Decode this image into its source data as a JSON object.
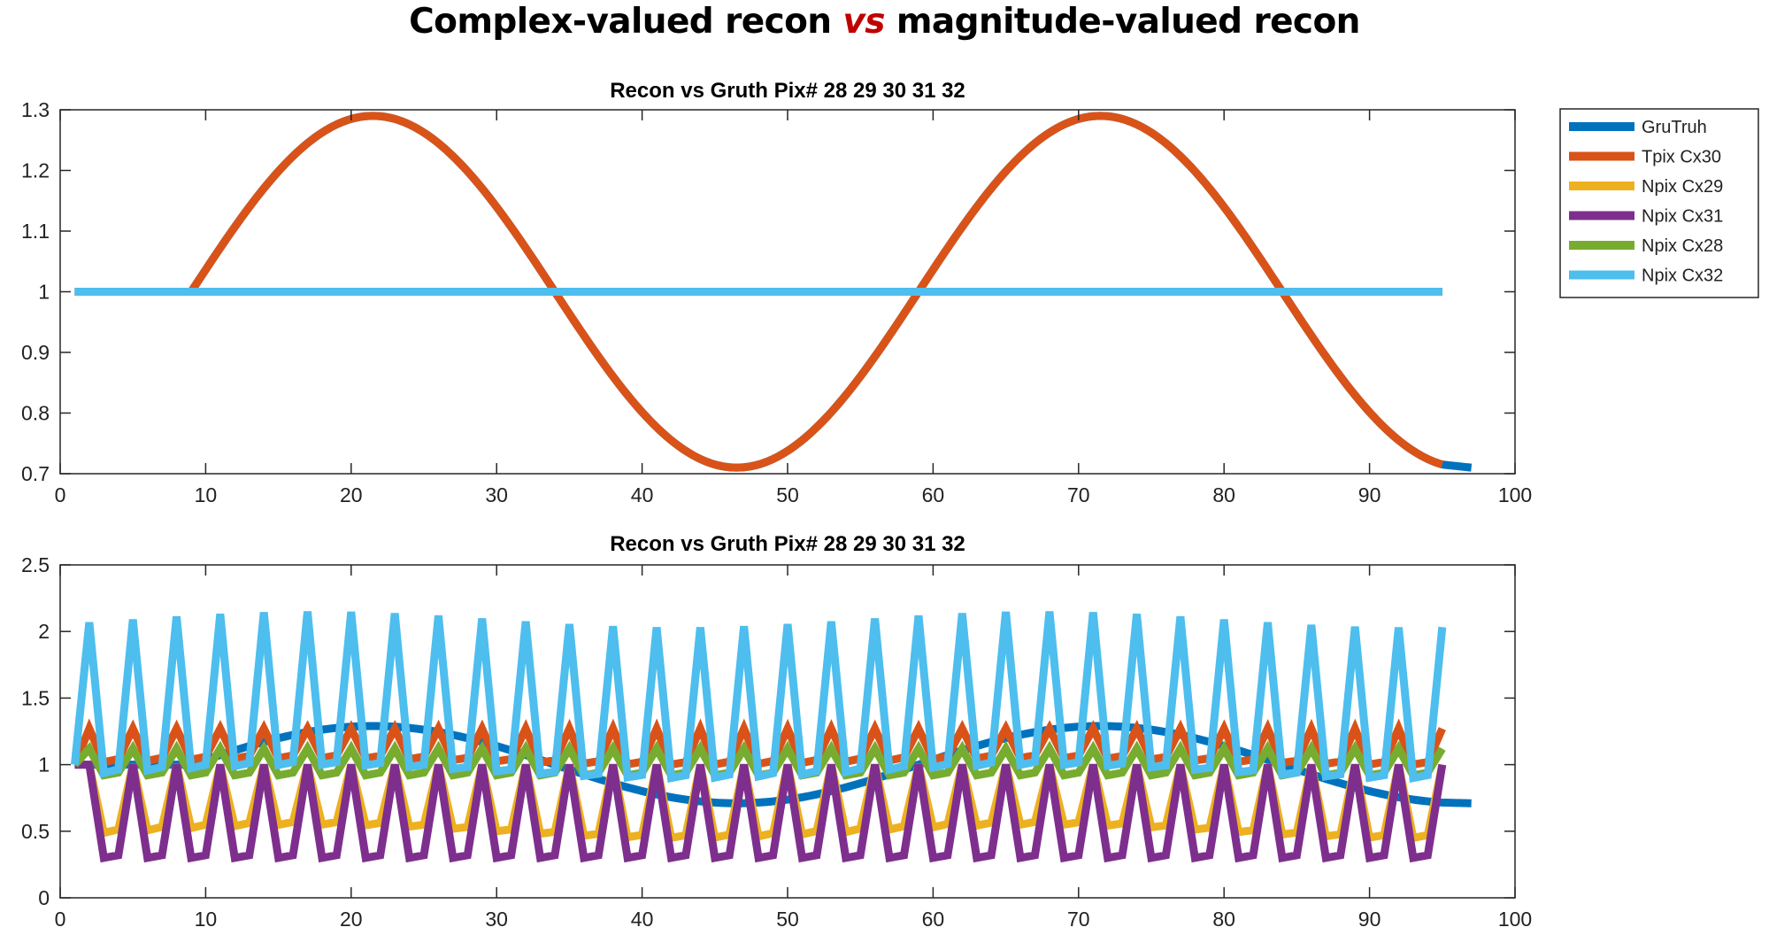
{
  "figure_title": {
    "part1": "Complex-valued recon ",
    "vs": "vs",
    "part2": " magnitude-valued recon"
  },
  "chart_data": [
    {
      "type": "line",
      "title": "Recon vs Gruth Pix# 28  29  30  31  32",
      "xlabel": "",
      "ylabel": "",
      "xlim": [
        0,
        100
      ],
      "ylim": [
        0.7,
        1.3
      ],
      "xticks": [
        0,
        10,
        20,
        30,
        40,
        50,
        60,
        70,
        80,
        90,
        100
      ],
      "yticks": [
        0.7,
        0.8,
        0.9,
        1,
        1.1,
        1.2,
        1.3
      ],
      "ytick_labels": [
        "0.7",
        "0.8",
        "0.9",
        "1",
        "1.1",
        "1.2",
        "1.3"
      ],
      "grid": false,
      "series": [
        {
          "name": "GruTruh",
          "color": "#0072BD",
          "x_range": [
            1,
            97
          ],
          "shape": "1 until x=7, then 1+0.29*sin(2*pi*(x-9)/50), ends 0.71",
          "points": [
            [
              1,
              1.0
            ],
            [
              7,
              1.0
            ],
            [
              9,
              1.0
            ],
            [
              21.5,
              1.29
            ],
            [
              34,
              1.0
            ],
            [
              46.5,
              0.71
            ],
            [
              59,
              1.0
            ],
            [
              71.5,
              1.29
            ],
            [
              84,
              1.0
            ],
            [
              95,
              0.715
            ],
            [
              97,
              0.71
            ]
          ]
        },
        {
          "name": "Tpix Cx30",
          "color": "#D95319",
          "x_range": [
            1,
            95
          ],
          "shape": "same as GruTruh",
          "points": [
            [
              1,
              1.0
            ],
            [
              7,
              1.0
            ],
            [
              9,
              1.0
            ],
            [
              21.5,
              1.29
            ],
            [
              34,
              1.0
            ],
            [
              46.5,
              0.71
            ],
            [
              59,
              1.0
            ],
            [
              71.5,
              1.29
            ],
            [
              84,
              1.0
            ],
            [
              95,
              0.715
            ]
          ]
        },
        {
          "name": "Npix Cx29",
          "color": "#EDB120",
          "x_range": [
            1,
            95
          ],
          "points": [
            [
              1,
              1.0
            ],
            [
              95,
              1.0
            ]
          ]
        },
        {
          "name": "Npix Cx31",
          "color": "#7E2F8E",
          "x_range": [
            1,
            95
          ],
          "points": [
            [
              1,
              1.0
            ],
            [
              95,
              1.0
            ]
          ]
        },
        {
          "name": "Npix Cx28",
          "color": "#77AC30",
          "x_range": [
            1,
            95
          ],
          "points": [
            [
              1,
              1.0
            ],
            [
              95,
              1.0
            ]
          ]
        },
        {
          "name": "Npix Cx32",
          "color": "#4DBEEE",
          "x_range": [
            1,
            95
          ],
          "points": [
            [
              1,
              1.0
            ],
            [
              95,
              1.0
            ]
          ]
        }
      ],
      "legend": [
        "GruTruh",
        "Tpix Cx30",
        "Npix Cx29",
        "Npix Cx31",
        "Npix Cx28",
        "Npix Cx32"
      ],
      "legend_position": "outside-right"
    },
    {
      "type": "line",
      "title": "Recon vs Gruth Pix# 28  29  30  31  32",
      "xlabel": "",
      "ylabel": "",
      "xlim": [
        0,
        100
      ],
      "ylim": [
        0,
        2.5
      ],
      "xticks": [
        0,
        10,
        20,
        30,
        40,
        50,
        60,
        70,
        80,
        90,
        100
      ],
      "yticks": [
        0,
        0.5,
        1,
        1.5,
        2,
        2.5
      ],
      "ytick_labels": [
        "0",
        "0.5",
        "1",
        "1.5",
        "2",
        "2.5"
      ],
      "grid": false,
      "series": [
        {
          "name": "GruTruh",
          "color": "#0072BD",
          "x_range": [
            1,
            97
          ],
          "shape": "smooth: 1 until x=7, then 1+0.29*sin(2*pi*(x-9)/50)",
          "points": [
            [
              1,
              1.0
            ],
            [
              9,
              1.0
            ],
            [
              21.5,
              1.29
            ],
            [
              34,
              1.0
            ],
            [
              46.5,
              0.71
            ],
            [
              59,
              1.0
            ],
            [
              71.5,
              1.29
            ],
            [
              84,
              1.0
            ],
            [
              95,
              0.715
            ],
            [
              97,
              0.71
            ]
          ]
        },
        {
          "name": "Tpix Cx30",
          "color": "#D95319",
          "x_range": [
            1,
            95
          ],
          "period": 3,
          "peak_range": [
            1.27,
            1.27
          ],
          "trough_range": [
            1.0,
            1.05
          ]
        },
        {
          "name": "Npix Cx29",
          "color": "#EDB120",
          "x_range": [
            1,
            95
          ],
          "period": 3,
          "peak_range": [
            1.0,
            1.0
          ],
          "trough_range": [
            0.45,
            0.55
          ]
        },
        {
          "name": "Npix Cx31",
          "color": "#7E2F8E",
          "x_range": [
            1,
            95
          ],
          "period": 3,
          "peak_range": [
            1.0,
            1.0
          ],
          "trough_range": [
            0.3,
            0.3
          ]
        },
        {
          "name": "Npix Cx28",
          "color": "#77AC30",
          "x_range": [
            1,
            95
          ],
          "period": 3,
          "peak_range": [
            1.12,
            1.12
          ],
          "trough_range": [
            0.92,
            0.92
          ]
        },
        {
          "name": "Npix Cx32",
          "color": "#4DBEEE",
          "x_range": [
            1,
            95
          ],
          "period": 3,
          "peak_range": [
            2.03,
            2.15
          ],
          "trough_range": [
            0.9,
            1.0
          ]
        }
      ]
    }
  ]
}
